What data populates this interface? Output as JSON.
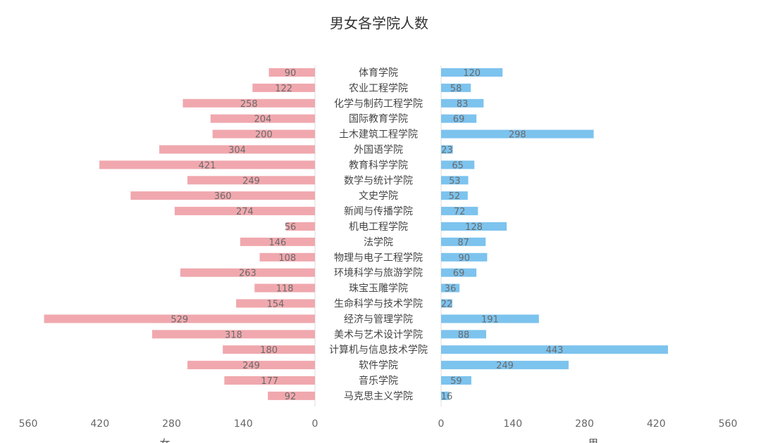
{
  "chart_data": {
    "type": "bar",
    "orientation": "horizontal-butterfly",
    "title": "男女各学院人数",
    "categories": [
      "体育学院",
      "农业工程学院",
      "化学与制药工程学院",
      "国际教育学院",
      "土木建筑工程学院",
      "外国语学院",
      "教育科学学院",
      "数学与统计学院",
      "文史学院",
      "新闻与传播学院",
      "机电工程学院",
      "法学院",
      "物理与电子工程学院",
      "环境科学与旅游学院",
      "珠宝玉雕学院",
      "生命科学与技术学院",
      "经济与管理学院",
      "美术与艺术设计学院",
      "计算机与信息技术学院",
      "软件学院",
      "音乐学院",
      "马克思主义学院"
    ],
    "series": [
      {
        "name": "女",
        "color": "#f0a8ae",
        "side": "left",
        "values": [
          90,
          122,
          258,
          204,
          200,
          304,
          421,
          249,
          360,
          274,
          56,
          146,
          108,
          263,
          118,
          154,
          529,
          318,
          180,
          249,
          177,
          92
        ]
      },
      {
        "name": "男",
        "color": "#7cc3ee",
        "side": "right",
        "values": [
          120,
          58,
          83,
          69,
          298,
          23,
          65,
          53,
          52,
          72,
          128,
          87,
          90,
          69,
          36,
          22,
          191,
          88,
          443,
          249,
          59,
          16
        ]
      }
    ],
    "left_axis_ticks": [
      "560",
      "420",
      "280",
      "140",
      "0"
    ],
    "right_axis_ticks": [
      "0",
      "140",
      "280",
      "420",
      "560"
    ],
    "xlim": [
      0,
      560
    ],
    "grid": false,
    "legend": "none"
  }
}
